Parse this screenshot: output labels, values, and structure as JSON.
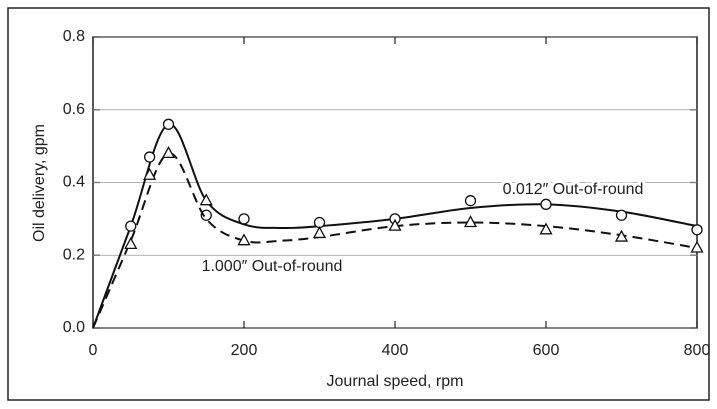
{
  "chart_data": {
    "type": "line",
    "xlabel": "Journal speed, rpm",
    "ylabel": "Oil delivery, gpm",
    "xlim": [
      0,
      800
    ],
    "xticks": [
      0,
      200,
      400,
      600,
      800
    ],
    "ylim": [
      0,
      0.8
    ],
    "yticks": [
      {
        "value": 0,
        "label": "0.0"
      },
      0.2,
      0.4,
      0.6,
      0.8
    ],
    "grid": true,
    "series": [
      {
        "name": "0.012″ Out-of-round",
        "color": "#111111",
        "dash": "solid",
        "marker": "circle",
        "x": [
          0,
          50,
          100,
          150,
          200,
          250,
          300,
          400,
          500,
          600,
          700,
          800
        ],
        "values": [
          0,
          0.28,
          0.56,
          0.35,
          0.285,
          0.275,
          0.28,
          0.3,
          0.33,
          0.34,
          0.32,
          0.28
        ],
        "markers": {
          "x": [
            50,
            75,
            100,
            150,
            200,
            300,
            400,
            500,
            600,
            700,
            800
          ],
          "values": [
            0.28,
            0.47,
            0.56,
            0.31,
            0.3,
            0.29,
            0.3,
            0.35,
            0.34,
            0.31,
            0.27
          ]
        }
      },
      {
        "name": "1.000″ Out-of-round",
        "color": "#111111",
        "dash": "dashed",
        "marker": "triangle",
        "x": [
          0,
          50,
          100,
          150,
          200,
          250,
          300,
          400,
          500,
          600,
          700,
          800
        ],
        "values": [
          0,
          0.24,
          0.48,
          0.3,
          0.24,
          0.24,
          0.25,
          0.28,
          0.29,
          0.28,
          0.255,
          0.22
        ],
        "markers": {
          "x": [
            50,
            75,
            100,
            150,
            200,
            300,
            400,
            500,
            600,
            700,
            800
          ],
          "values": [
            0.23,
            0.42,
            0.48,
            0.35,
            0.24,
            0.26,
            0.28,
            0.29,
            0.27,
            0.25,
            0.22
          ]
        }
      }
    ]
  }
}
